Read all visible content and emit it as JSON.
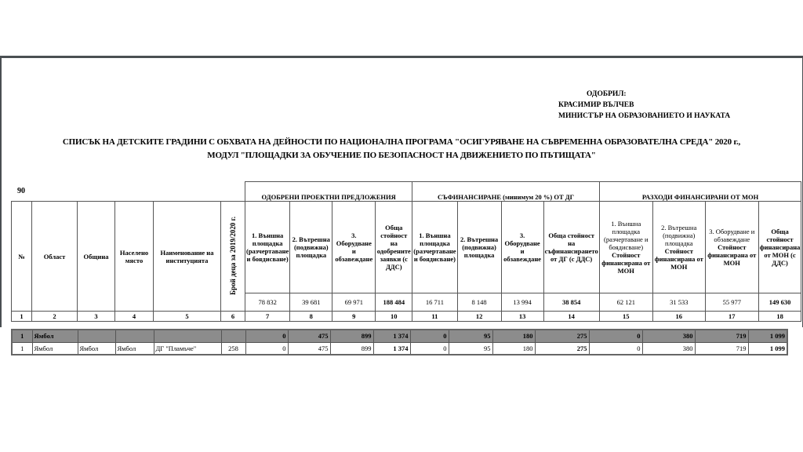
{
  "approval": {
    "line1": "ОДОБРИЛ:",
    "line2": "КРАСИМИР ВЪЛЧЕВ",
    "line3": "МИНИСТЪР НА ОБРАЗОВАНИЕТО И НАУКАТА"
  },
  "title": {
    "line1": "СПИСЪК НА ДЕТСКИТЕ ГРАДИНИ С ОБХВАТА НА ДЕЙНОСТИ ПО НАЦИОНАЛНА ПРОГРАМА \"ОСИГУРЯВАНЕ НА СЪВРЕМЕННА ОБРАЗОВАТЕЛНА СРЕДА\" 2020 г.,",
    "line2": "МОДУЛ \"ПЛОЩАДКИ ЗА ОБУЧЕНИЕ ПО БЕЗОПАСНОСТ НА ДВИЖЕНИЕТО ПО ПЪТИЩАТА\""
  },
  "count": "90",
  "groups": [
    "ОДОБРЕНИ ПРОЕКТНИ ПРЕДЛОЖЕНИЯ",
    "СЪФИНАНСИРАНЕ (минимум 20 %) ОТ ДГ",
    "РАЗХОДИ ФИНАНСИРАНИ ОТ МОН"
  ],
  "headers": [
    "№",
    "Област",
    "Община",
    "Населено място",
    "Наименование на институцията",
    "Брой деца за 2019/2020 г.",
    "1. Външна площадка (разчертаване и боядисване)",
    "2. Вътрешна (подвижна) площадка",
    "3. Оборудване и обзавеждане",
    "Обща стойност на одобрените заявки (с ДДС)",
    "1. Външна площадка (разчертаване и боядисване)",
    "2. Вътрешна (подвижна) площадка",
    "3. Оборудване и обзавеждане",
    "Обща стойност на съфинансирането от ДГ (с ДДС)",
    "1. Външна площадка (разчертаване и боядисване)",
    "2. Вътрешна (подвижна) площадка",
    "3. Оборудване и обзавеждане",
    "Обща стойност финансирана от МОН (с ДДС)"
  ],
  "mon_sub": "Стойност финансирана от МОН",
  "totals": [
    "78 832",
    "39 681",
    "69 971",
    "188 484",
    "16 711",
    "8 148",
    "13 994",
    "38 854",
    "62 121",
    "31 533",
    "55 977",
    "149 630"
  ],
  "col_numbers": [
    "1",
    "2",
    "3",
    "4",
    "5",
    "6",
    "7",
    "8",
    "9",
    "10",
    "11",
    "12",
    "13",
    "14",
    "15",
    "16",
    "17",
    "18"
  ],
  "rows": [
    {
      "type": "region",
      "cells": [
        "1",
        "Ямбол",
        "",
        "",
        "",
        "",
        "0",
        "475",
        "899",
        "1 374",
        "0",
        "95",
        "180",
        "275",
        "0",
        "380",
        "719",
        "1 099"
      ]
    },
    {
      "type": "item",
      "cells": [
        "1",
        "Ямбол",
        "Ямбол",
        "Ямбол",
        "ДГ \"Пламъче\"",
        "258",
        "0",
        "475",
        "899",
        "1 374",
        "0",
        "95",
        "180",
        "275",
        "0",
        "380",
        "719",
        "1 099"
      ]
    }
  ]
}
